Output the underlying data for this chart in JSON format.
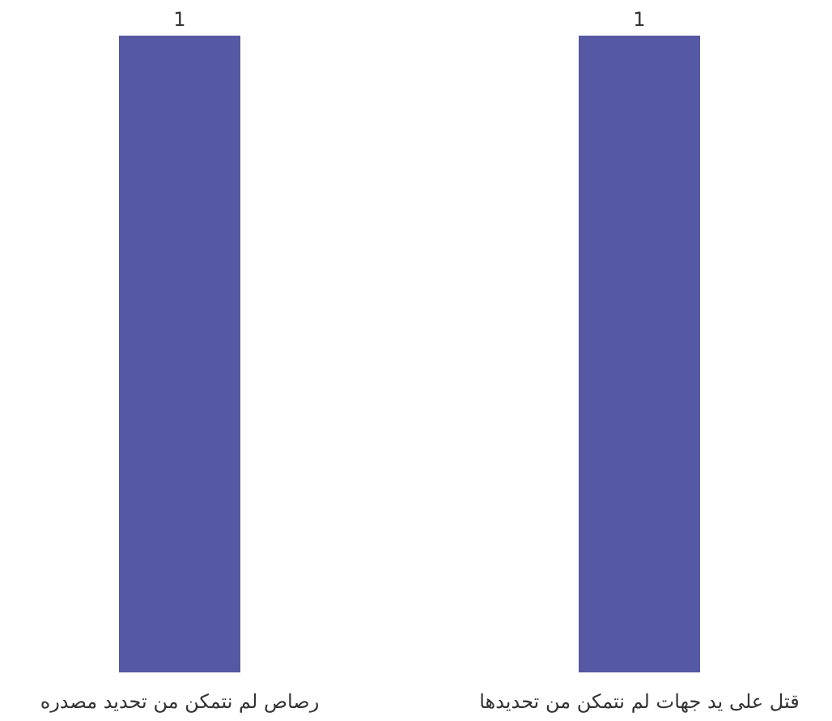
{
  "chart_data": {
    "type": "bar",
    "categories": [
      "رصاص لم نتمكن من تحديد مصدره",
      "قتل على يد جهات لم نتمكن من تحديدها"
    ],
    "values": [
      1,
      1
    ],
    "color": "#5558a3",
    "data_labels": true
  }
}
